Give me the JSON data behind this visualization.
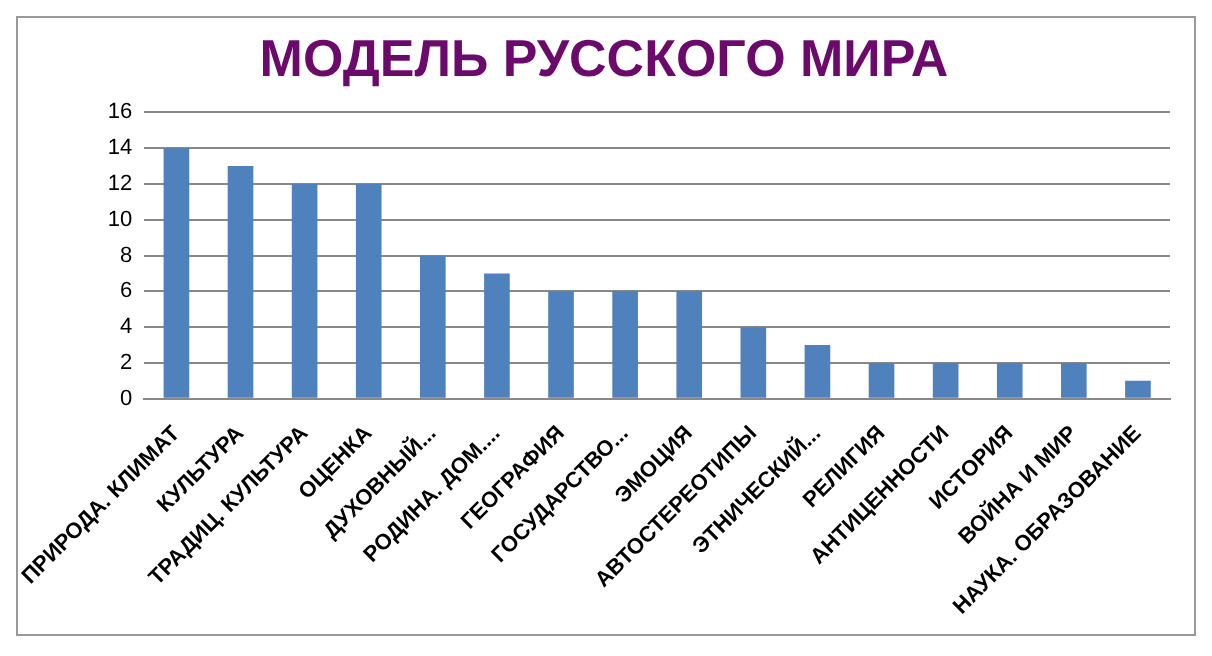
{
  "chart_data": {
    "type": "bar",
    "title": "МОДЕЛЬ РУССКОГО МИРА",
    "categories": [
      "ПРИРОДА. КЛИМАТ",
      "КУЛЬТУРА",
      "ТРАДИЦ. КУЛЬТУРА",
      "ОЦЕНКА",
      "ДУХОВНЫЙ...",
      "РОДИНА. ДОМ....",
      "ГЕОГРАФИЯ",
      "ГОСУДАРСТВО...",
      "ЭМОЦИЯ",
      "АВТОСТЕРЕОТИПЫ",
      "ЭТНИЧЕСКИЙ...",
      "РЕЛИГИЯ",
      "АНТИЦЕННОСТИ",
      "ИСТОРИЯ",
      "ВОЙНА И МИР",
      "НАУКА. ОБРАЗОВАНИЕ"
    ],
    "values": [
      14,
      13,
      12,
      12,
      8,
      7,
      6,
      6,
      6,
      4,
      3,
      2,
      2,
      2,
      2,
      1
    ],
    "color": "#4f81bd",
    "ylim": [
      0,
      16
    ],
    "yticks": [
      0,
      2,
      4,
      6,
      8,
      10,
      12,
      14,
      16
    ],
    "grid": "y",
    "legend": false
  }
}
